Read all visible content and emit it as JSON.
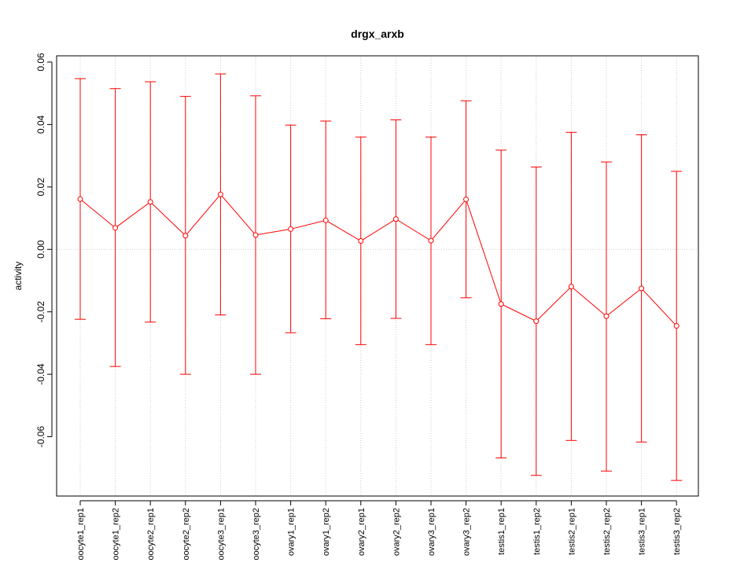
{
  "chart_data": {
    "type": "line",
    "title": "drgx_arxb",
    "xlabel": "",
    "ylabel": "activity",
    "categories": [
      "oocyte1_rep1",
      "oocyte1_rep2",
      "oocyte2_rep1",
      "oocyte2_rep2",
      "oocyte3_rep1",
      "oocyte3_rep2",
      "ovary1_rep1",
      "ovary1_rep2",
      "ovary2_rep1",
      "ovary2_rep2",
      "ovary3_rep1",
      "ovary3_rep2",
      "testis1_rep1",
      "testis1_rep2",
      "testis2_rep1",
      "testis2_rep2",
      "testis3_rep1",
      "testis3_rep2"
    ],
    "series": [
      {
        "values": [
          0.0161,
          0.0069,
          0.0152,
          0.0044,
          0.0176,
          0.0046,
          0.0065,
          0.0093,
          0.0027,
          0.0097,
          0.0028,
          0.016,
          -0.0175,
          -0.023,
          -0.0119,
          -0.0214,
          -0.0125,
          -0.0245
        ],
        "upper": [
          0.0547,
          0.0515,
          0.0537,
          0.049,
          0.0562,
          0.0492,
          0.0398,
          0.0411,
          0.036,
          0.0415,
          0.036,
          0.0476,
          0.0318,
          0.0264,
          0.0375,
          0.028,
          0.0367,
          0.025
        ],
        "lower": [
          -0.0224,
          -0.0375,
          -0.0233,
          -0.04,
          -0.021,
          -0.04,
          -0.0267,
          -0.0222,
          -0.0305,
          -0.0221,
          -0.0305,
          -0.0155,
          -0.0668,
          -0.0724,
          -0.0612,
          -0.071,
          -0.0617,
          -0.074
        ]
      }
    ],
    "yticks": [
      -0.06,
      -0.04,
      -0.02,
      0.0,
      0.02,
      0.04,
      0.06
    ],
    "ytick_labels": [
      "-0.06",
      "-0.04",
      "-0.02",
      "0.00",
      "0.02",
      "0.04",
      "0.06"
    ],
    "ylim": [
      -0.079,
      0.062
    ],
    "grid": true,
    "colors": {
      "series": "#ff0000",
      "grid": "#cccccc",
      "axis": "#000000"
    }
  }
}
